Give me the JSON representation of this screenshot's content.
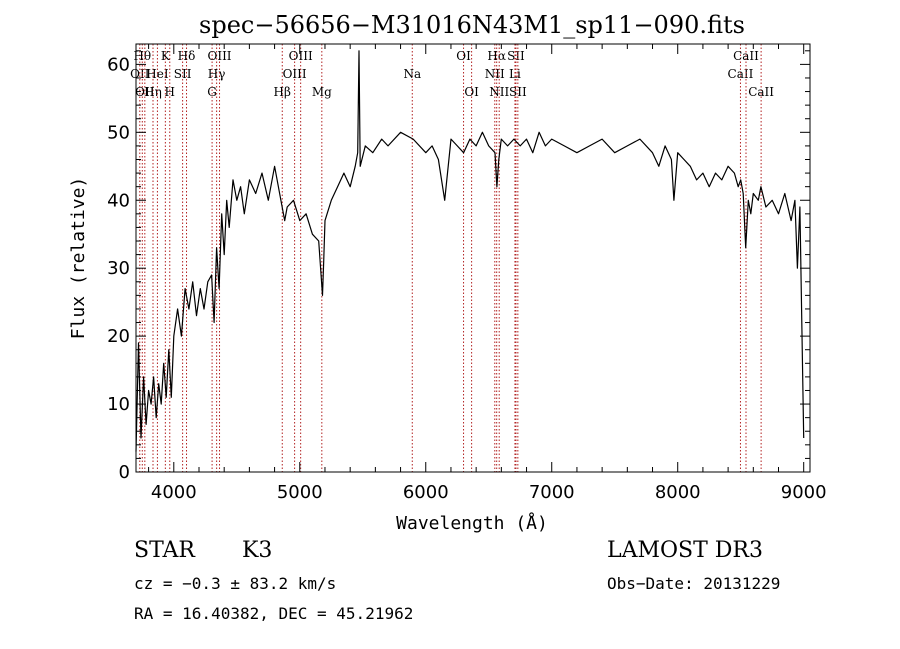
{
  "chart_data": {
    "type": "line",
    "title": "spec−56656−M31016N43M1_sp11−090.fits",
    "xlabel": "Wavelength (Å)",
    "ylabel": "Flux (relative)",
    "xlim": [
      3700,
      9050
    ],
    "ylim": [
      0,
      63
    ],
    "x_ticks": [
      4000,
      5000,
      6000,
      7000,
      8000,
      9000
    ],
    "x_tick_labels": [
      "4000",
      "5000",
      "6000",
      "7000",
      "8000",
      "9000"
    ],
    "y_ticks": [
      0,
      10,
      20,
      30,
      40,
      50,
      60
    ],
    "y_tick_labels": [
      "0",
      "10",
      "20",
      "30",
      "40",
      "50",
      "60"
    ],
    "grid": false,
    "line_color": "#000000",
    "marker_color": "#b22222",
    "series": [
      {
        "name": "spectrum",
        "x": [
          3700,
          3720,
          3740,
          3760,
          3780,
          3800,
          3820,
          3840,
          3860,
          3880,
          3900,
          3920,
          3940,
          3960,
          3980,
          4000,
          4030,
          4060,
          4090,
          4120,
          4150,
          4180,
          4210,
          4240,
          4270,
          4300,
          4320,
          4340,
          4360,
          4380,
          4400,
          4420,
          4440,
          4470,
          4500,
          4530,
          4560,
          4600,
          4650,
          4700,
          4750,
          4800,
          4850,
          4880,
          4900,
          4950,
          5000,
          5050,
          5100,
          5150,
          5180,
          5190,
          5200,
          5250,
          5300,
          5350,
          5400,
          5440,
          5460,
          5470,
          5480,
          5520,
          5580,
          5650,
          5700,
          5800,
          5900,
          6000,
          6050,
          6100,
          6150,
          6200,
          6250,
          6300,
          6350,
          6400,
          6450,
          6500,
          6550,
          6565,
          6580,
          6600,
          6650,
          6700,
          6750,
          6800,
          6850,
          6900,
          6950,
          7000,
          7100,
          7200,
          7300,
          7400,
          7500,
          7600,
          7700,
          7800,
          7850,
          7900,
          7950,
          7970,
          8000,
          8050,
          8100,
          8150,
          8200,
          8250,
          8300,
          8350,
          8400,
          8450,
          8480,
          8500,
          8520,
          8540,
          8560,
          8580,
          8600,
          8640,
          8660,
          8700,
          8750,
          8800,
          8850,
          8900,
          8930,
          8950,
          8970,
          9000
        ],
        "y": [
          3,
          19,
          5,
          14,
          7,
          12,
          10,
          14,
          8,
          13,
          10,
          16,
          11,
          18,
          11,
          20,
          24,
          20,
          27,
          24,
          28,
          23,
          27,
          24,
          28,
          29,
          22,
          33,
          27,
          38,
          32,
          40,
          36,
          43,
          40,
          42,
          38,
          43,
          41,
          44,
          40,
          45,
          40,
          37,
          39,
          40,
          37,
          38,
          35,
          34,
          26,
          31,
          37,
          40,
          42,
          44,
          42,
          45,
          47,
          62,
          45,
          48,
          47,
          49,
          48,
          50,
          49,
          47,
          48,
          46,
          40,
          49,
          48,
          47,
          49,
          48,
          50,
          48,
          47,
          42,
          46,
          49,
          48,
          49,
          48,
          49,
          47,
          50,
          48,
          49,
          48,
          47,
          48,
          49,
          47,
          48,
          49,
          47,
          45,
          48,
          46,
          40,
          47,
          46,
          45,
          43,
          44,
          42,
          44,
          43,
          45,
          44,
          42,
          43,
          41,
          33,
          40,
          38,
          41,
          40,
          42,
          39,
          40,
          38,
          41,
          37,
          40,
          30,
          39,
          5
        ]
      }
    ],
    "line_marks": [
      {
        "wavelength": 3730,
        "label": "OII",
        "row": 1
      },
      {
        "wavelength": 3750,
        "label": "Hθ",
        "row": 0
      },
      {
        "wavelength": 3770,
        "label": "OII",
        "row": 2
      },
      {
        "wavelength": 3835,
        "label": "Hη",
        "row": 2
      },
      {
        "wavelength": 3870,
        "label": "HeI",
        "row": 1
      },
      {
        "wavelength": 3933,
        "label": "K",
        "row": 0
      },
      {
        "wavelength": 3968,
        "label": "H",
        "row": 2
      },
      {
        "wavelength": 4070,
        "label": "SII",
        "row": 1
      },
      {
        "wavelength": 4101,
        "label": "Hδ",
        "row": 0
      },
      {
        "wavelength": 4304,
        "label": "G",
        "row": 2
      },
      {
        "wavelength": 4340,
        "label": "Hγ",
        "row": 1
      },
      {
        "wavelength": 4363,
        "label": "OIII",
        "row": 0
      },
      {
        "wavelength": 4861,
        "label": "Hβ",
        "row": 2
      },
      {
        "wavelength": 4959,
        "label": "OIII",
        "row": 1
      },
      {
        "wavelength": 5007,
        "label": "OIII",
        "row": 0
      },
      {
        "wavelength": 5175,
        "label": "Mg",
        "row": 2
      },
      {
        "wavelength": 5893,
        "label": "Na",
        "row": 1
      },
      {
        "wavelength": 6300,
        "label": "OI",
        "row": 0
      },
      {
        "wavelength": 6364,
        "label": "OI",
        "row": 2
      },
      {
        "wavelength": 6548,
        "label": "NII",
        "row": 1
      },
      {
        "wavelength": 6563,
        "label": "Hα",
        "row": 0
      },
      {
        "wavelength": 6583,
        "label": "NII",
        "row": 2
      },
      {
        "wavelength": 6708,
        "label": "Li",
        "row": 1
      },
      {
        "wavelength": 6716,
        "label": "SII",
        "row": 0
      },
      {
        "wavelength": 6731,
        "label": "SII",
        "row": 2
      },
      {
        "wavelength": 8498,
        "label": "CaII",
        "row": 1
      },
      {
        "wavelength": 8542,
        "label": "CaII",
        "row": 0
      },
      {
        "wavelength": 8662,
        "label": "CaII",
        "row": 2
      }
    ]
  },
  "info": {
    "class_label": "STAR",
    "subclass": "K3",
    "survey": "LAMOST DR3",
    "redshift": "cz = −0.3 ± 83.2 km/s",
    "obs_date": "Obs−Date: 20131229",
    "coords": "RA =  16.40382, DEC =  45.21962"
  }
}
